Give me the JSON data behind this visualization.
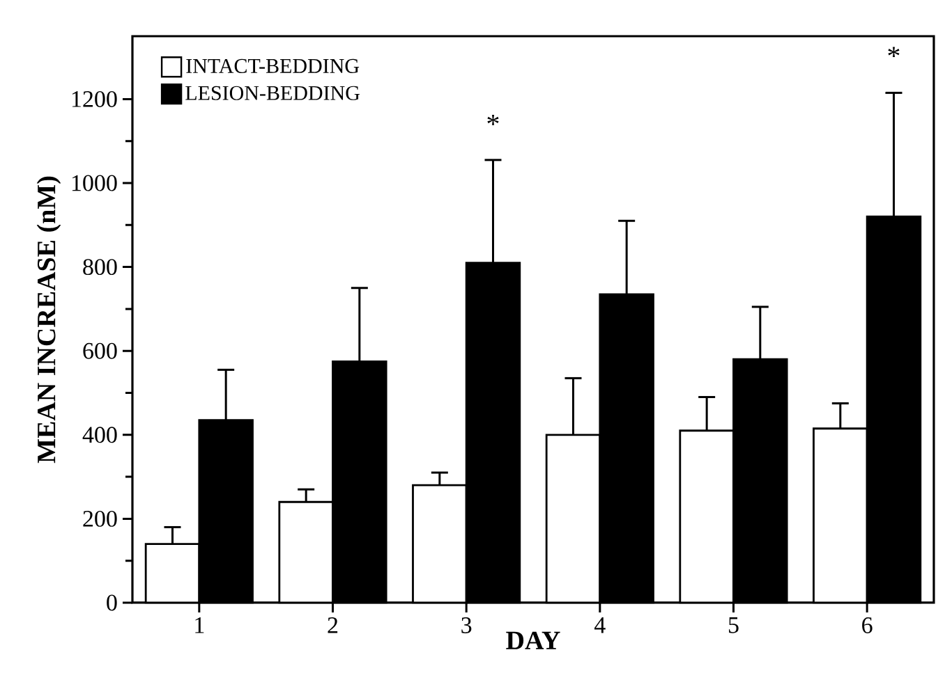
{
  "chart_data": {
    "type": "bar",
    "xlabel": "DAY",
    "ylabel": "MEAN INCREASE (nM)",
    "categories": [
      "1",
      "2",
      "3",
      "4",
      "5",
      "6"
    ],
    "series": [
      {
        "name": "INTACT-BEDDING",
        "color": "#ffffff",
        "values": [
          140,
          240,
          280,
          400,
          410,
          415
        ],
        "errors": [
          [
            140,
            180
          ],
          [
            240,
            270
          ],
          [
            280,
            310
          ],
          [
            400,
            535
          ],
          [
            410,
            490
          ],
          [
            415,
            475
          ]
        ]
      },
      {
        "name": "LESION-BEDDING",
        "color": "#000000",
        "values": [
          435,
          575,
          810,
          735,
          580,
          920
        ],
        "errors": [
          [
            435,
            555
          ],
          [
            575,
            750
          ],
          [
            810,
            1055
          ],
          [
            735,
            910
          ],
          [
            580,
            705
          ],
          [
            920,
            1215
          ]
        ]
      }
    ],
    "ylim": [
      0,
      1350
    ],
    "yticks": [
      0,
      200,
      400,
      600,
      800,
      1000,
      1200
    ],
    "legend": "top left",
    "grid": false,
    "annotations": [
      "*",
      "*"
    ]
  }
}
